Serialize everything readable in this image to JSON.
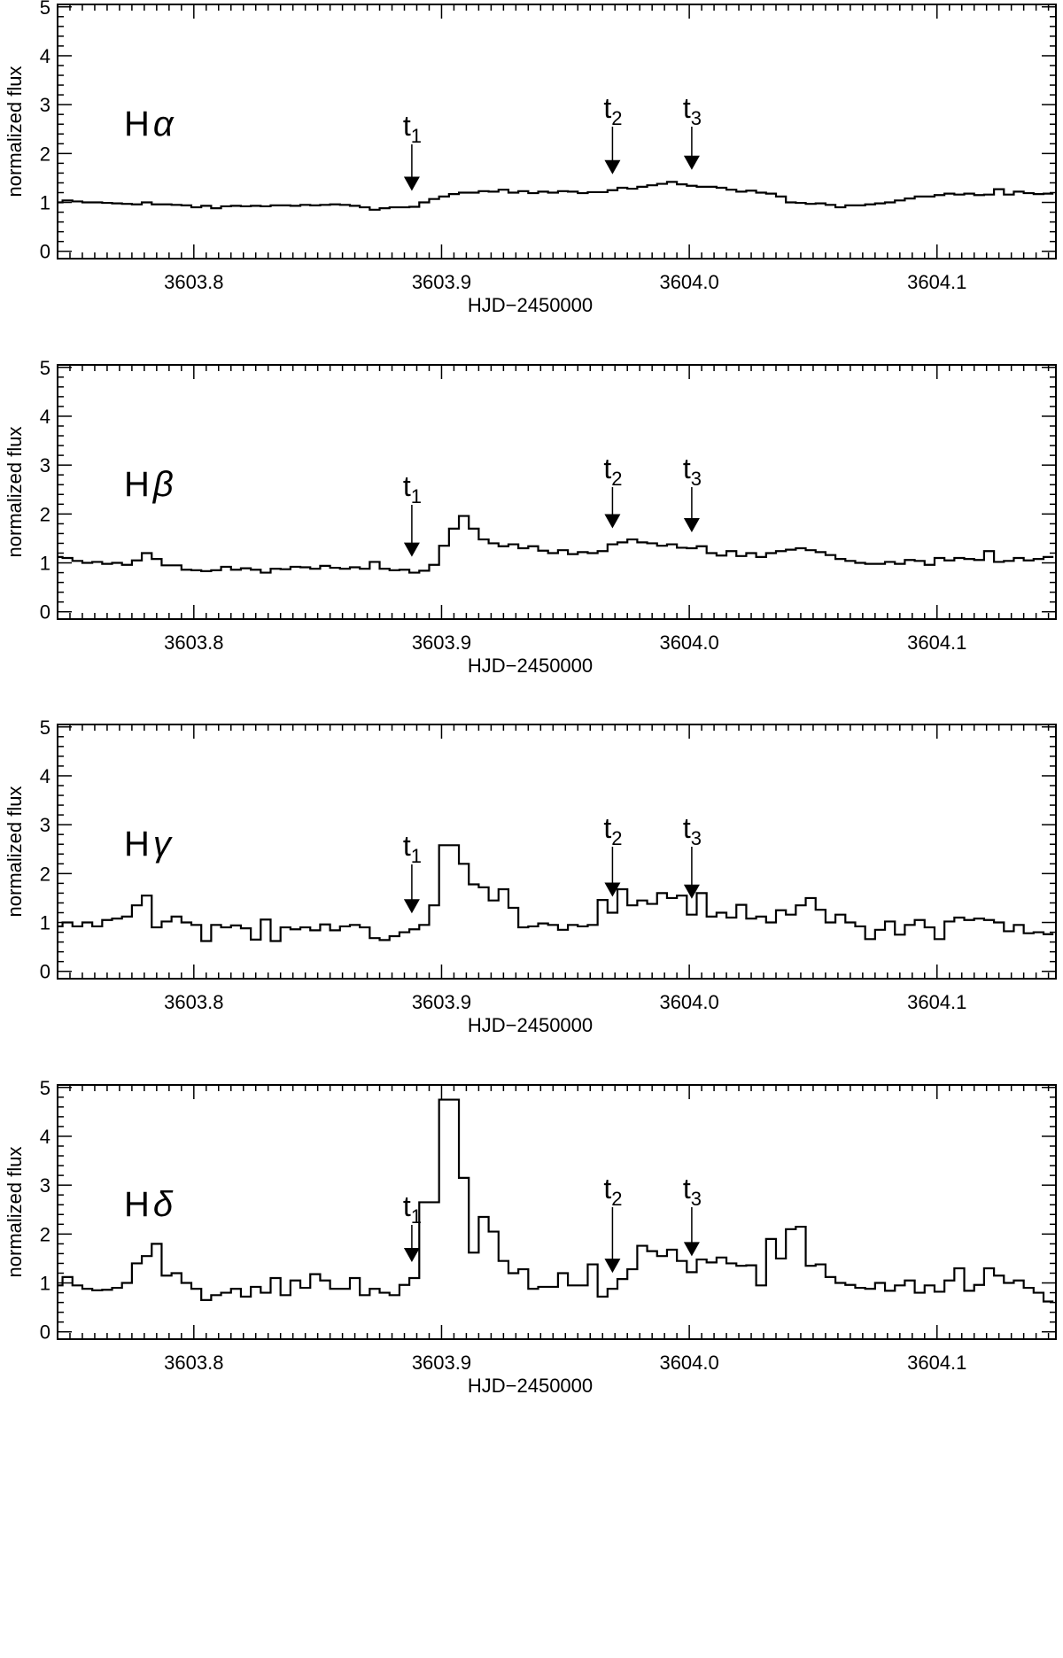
{
  "chart_data": [
    {
      "type": "line",
      "line_name": "H",
      "line_greek": "α",
      "xlabel": "HJD−2450000",
      "ylabel": "normalized flux",
      "xlim": [
        3603.745,
        3604.148
      ],
      "ylim": [
        -0.15,
        5.05
      ],
      "x_ticks": [
        3603.8,
        3603.9,
        3604.0,
        3604.1
      ],
      "x_tick_labels": [
        "3603.8",
        "3603.9",
        "3604.0",
        "3604.1"
      ],
      "y_ticks": [
        0,
        1,
        2,
        3,
        4,
        5
      ],
      "y_tick_labels": [
        "0",
        "1",
        "2",
        "3",
        "4",
        "5"
      ],
      "x": [
        3603.745,
        3603.749,
        3603.753,
        3603.757,
        3603.761,
        3603.765,
        3603.769,
        3603.773,
        3603.777,
        3603.781,
        3603.785,
        3603.789,
        3603.793,
        3603.797,
        3603.801,
        3603.805,
        3603.809,
        3603.813,
        3603.817,
        3603.821,
        3603.825,
        3603.829,
        3603.833,
        3603.837,
        3603.841,
        3603.845,
        3603.849,
        3603.853,
        3603.857,
        3603.861,
        3603.865,
        3603.869,
        3603.873,
        3603.877,
        3603.881,
        3603.885,
        3603.889,
        3603.893,
        3603.897,
        3603.901,
        3603.905,
        3603.909,
        3603.913,
        3603.917,
        3603.921,
        3603.925,
        3603.929,
        3603.933,
        3603.937,
        3603.941,
        3603.945,
        3603.949,
        3603.953,
        3603.957,
        3603.961,
        3603.965,
        3603.969,
        3603.973,
        3603.977,
        3603.981,
        3603.985,
        3603.989,
        3603.993,
        3603.997,
        3604.001,
        3604.005,
        3604.009,
        3604.013,
        3604.017,
        3604.021,
        3604.025,
        3604.029,
        3604.033,
        3604.037,
        3604.041,
        3604.045,
        3604.049,
        3604.053,
        3604.057,
        3604.061,
        3604.065,
        3604.069,
        3604.073,
        3604.077,
        3604.081,
        3604.085,
        3604.089,
        3604.093,
        3604.097,
        3604.101,
        3604.105,
        3604.109,
        3604.113,
        3604.117,
        3604.121,
        3604.125,
        3604.129,
        3604.133,
        3604.137,
        3604.141,
        3604.145
      ],
      "y": [
        1.0,
        1.04,
        1.02,
        1.0,
        1.0,
        0.99,
        0.98,
        0.97,
        0.96,
        1.0,
        0.96,
        0.96,
        0.95,
        0.94,
        0.9,
        0.93,
        0.88,
        0.92,
        0.93,
        0.92,
        0.93,
        0.92,
        0.94,
        0.94,
        0.93,
        0.95,
        0.94,
        0.95,
        0.96,
        0.95,
        0.93,
        0.9,
        0.85,
        0.88,
        0.9,
        0.9,
        0.91,
        1.0,
        1.07,
        1.12,
        1.17,
        1.2,
        1.2,
        1.23,
        1.22,
        1.26,
        1.2,
        1.23,
        1.19,
        1.22,
        1.2,
        1.23,
        1.22,
        1.19,
        1.21,
        1.21,
        1.25,
        1.3,
        1.28,
        1.32,
        1.35,
        1.38,
        1.42,
        1.37,
        1.34,
        1.32,
        1.32,
        1.3,
        1.26,
        1.22,
        1.24,
        1.2,
        1.18,
        1.12,
        1.0,
        0.99,
        0.97,
        0.98,
        0.95,
        0.9,
        0.94,
        0.94,
        0.96,
        0.98,
        1.0,
        1.04,
        1.08,
        1.12,
        1.12,
        1.15,
        1.18,
        1.16,
        1.18,
        1.15,
        1.16,
        1.27,
        1.16,
        1.22,
        1.19,
        1.17,
        1.18
      ],
      "markers": [
        {
          "label": "t",
          "sub": "1",
          "x": 3603.888
        },
        {
          "label": "t",
          "sub": "2",
          "x": 3603.969
        },
        {
          "label": "t",
          "sub": "3",
          "x": 3604.001
        }
      ]
    },
    {
      "type": "line",
      "line_name": "H",
      "line_greek": "β",
      "xlabel": "HJD−2450000",
      "ylabel": "normalized flux",
      "xlim": [
        3603.745,
        3604.148
      ],
      "ylim": [
        -0.15,
        5.05
      ],
      "x_ticks": [
        3603.8,
        3603.9,
        3604.0,
        3604.1
      ],
      "x_tick_labels": [
        "3603.8",
        "3603.9",
        "3604.0",
        "3604.1"
      ],
      "y_ticks": [
        0,
        1,
        2,
        3,
        4,
        5
      ],
      "y_tick_labels": [
        "0",
        "1",
        "2",
        "3",
        "4",
        "5"
      ],
      "x": [
        3603.745,
        3603.749,
        3603.753,
        3603.757,
        3603.761,
        3603.765,
        3603.769,
        3603.773,
        3603.777,
        3603.781,
        3603.785,
        3603.789,
        3603.793,
        3603.797,
        3603.801,
        3603.805,
        3603.809,
        3603.813,
        3603.817,
        3603.821,
        3603.825,
        3603.829,
        3603.833,
        3603.837,
        3603.841,
        3603.845,
        3603.849,
        3603.853,
        3603.857,
        3603.861,
        3603.865,
        3603.869,
        3603.873,
        3603.877,
        3603.881,
        3603.885,
        3603.889,
        3603.893,
        3603.897,
        3603.901,
        3603.905,
        3603.909,
        3603.913,
        3603.917,
        3603.921,
        3603.925,
        3603.929,
        3603.933,
        3603.937,
        3603.941,
        3603.945,
        3603.949,
        3603.953,
        3603.957,
        3603.961,
        3603.965,
        3603.969,
        3603.973,
        3603.977,
        3603.981,
        3603.985,
        3603.989,
        3603.993,
        3603.997,
        3604.001,
        3604.005,
        3604.009,
        3604.013,
        3604.017,
        3604.021,
        3604.025,
        3604.029,
        3604.033,
        3604.037,
        3604.041,
        3604.045,
        3604.049,
        3604.053,
        3604.057,
        3604.061,
        3604.065,
        3604.069,
        3604.073,
        3604.077,
        3604.081,
        3604.085,
        3604.089,
        3604.093,
        3604.097,
        3604.101,
        3604.105,
        3604.109,
        3604.113,
        3604.117,
        3604.121,
        3604.125,
        3604.129,
        3604.133,
        3604.137,
        3604.141,
        3604.145
      ],
      "y": [
        1.12,
        1.1,
        1.04,
        1.0,
        1.02,
        0.98,
        1.0,
        0.96,
        1.05,
        1.2,
        1.08,
        0.95,
        0.95,
        0.86,
        0.85,
        0.83,
        0.85,
        0.92,
        0.86,
        0.89,
        0.86,
        0.8,
        0.88,
        0.87,
        0.92,
        0.91,
        0.88,
        0.94,
        0.9,
        0.88,
        0.91,
        0.88,
        1.02,
        0.88,
        0.85,
        0.86,
        0.8,
        0.84,
        0.96,
        1.35,
        1.7,
        1.96,
        1.7,
        1.48,
        1.4,
        1.34,
        1.38,
        1.3,
        1.34,
        1.25,
        1.2,
        1.26,
        1.18,
        1.22,
        1.2,
        1.24,
        1.38,
        1.42,
        1.48,
        1.42,
        1.4,
        1.35,
        1.38,
        1.31,
        1.3,
        1.34,
        1.2,
        1.15,
        1.24,
        1.14,
        1.2,
        1.12,
        1.2,
        1.24,
        1.27,
        1.3,
        1.26,
        1.22,
        1.16,
        1.08,
        1.04,
        1.0,
        0.98,
        0.98,
        1.02,
        0.98,
        1.06,
        1.04,
        0.96,
        1.1,
        1.05,
        1.1,
        1.08,
        1.06,
        1.24,
        1.02,
        1.04,
        1.1,
        1.05,
        1.08,
        1.12
      ],
      "markers": [
        {
          "label": "t",
          "sub": "1",
          "x": 3603.888
        },
        {
          "label": "t",
          "sub": "2",
          "x": 3603.969
        },
        {
          "label": "t",
          "sub": "3",
          "x": 3604.001
        }
      ]
    },
    {
      "type": "line",
      "line_name": "H",
      "line_greek": "γ",
      "xlabel": "HJD−2450000",
      "ylabel": "normalized flux",
      "xlim": [
        3603.745,
        3604.148
      ],
      "ylim": [
        -0.15,
        5.05
      ],
      "x_ticks": [
        3603.8,
        3603.9,
        3604.0,
        3604.1
      ],
      "x_tick_labels": [
        "3603.8",
        "3603.9",
        "3604.0",
        "3604.1"
      ],
      "y_ticks": [
        0,
        1,
        2,
        3,
        4,
        5
      ],
      "y_tick_labels": [
        "0",
        "1",
        "2",
        "3",
        "4",
        "5"
      ],
      "x": [
        3603.745,
        3603.749,
        3603.753,
        3603.757,
        3603.761,
        3603.765,
        3603.769,
        3603.773,
        3603.777,
        3603.781,
        3603.785,
        3603.789,
        3603.793,
        3603.797,
        3603.801,
        3603.805,
        3603.809,
        3603.813,
        3603.817,
        3603.821,
        3603.825,
        3603.829,
        3603.833,
        3603.837,
        3603.841,
        3603.845,
        3603.849,
        3603.853,
        3603.857,
        3603.861,
        3603.865,
        3603.869,
        3603.873,
        3603.877,
        3603.881,
        3603.885,
        3603.889,
        3603.893,
        3603.897,
        3603.901,
        3603.905,
        3603.909,
        3603.913,
        3603.917,
        3603.921,
        3603.925,
        3603.929,
        3603.933,
        3603.937,
        3603.941,
        3603.945,
        3603.949,
        3603.953,
        3603.957,
        3603.961,
        3603.965,
        3603.969,
        3603.973,
        3603.977,
        3603.981,
        3603.985,
        3603.989,
        3603.993,
        3603.997,
        3604.001,
        3604.005,
        3604.009,
        3604.013,
        3604.017,
        3604.021,
        3604.025,
        3604.029,
        3604.033,
        3604.037,
        3604.041,
        3604.045,
        3604.049,
        3604.053,
        3604.057,
        3604.061,
        3604.065,
        3604.069,
        3604.073,
        3604.077,
        3604.081,
        3604.085,
        3604.089,
        3604.093,
        3604.097,
        3604.101,
        3604.105,
        3604.109,
        3604.113,
        3604.117,
        3604.121,
        3604.125,
        3604.129,
        3604.133,
        3604.137,
        3604.141,
        3604.145
      ],
      "y": [
        0.92,
        1.0,
        0.92,
        1.0,
        0.92,
        1.05,
        1.08,
        1.12,
        1.35,
        1.55,
        0.9,
        1.02,
        1.12,
        1.0,
        0.95,
        0.62,
        0.95,
        0.9,
        0.94,
        0.88,
        0.65,
        1.06,
        0.62,
        0.9,
        0.86,
        0.9,
        0.84,
        0.96,
        0.84,
        0.92,
        0.95,
        0.9,
        0.68,
        0.64,
        0.72,
        0.8,
        0.86,
        0.95,
        1.35,
        2.58,
        2.58,
        2.2,
        1.78,
        1.72,
        1.45,
        1.68,
        1.3,
        0.9,
        0.92,
        0.98,
        0.95,
        0.85,
        0.95,
        0.92,
        0.95,
        1.46,
        1.2,
        1.68,
        1.35,
        1.45,
        1.38,
        1.6,
        1.5,
        1.55,
        1.16,
        1.6,
        1.12,
        1.2,
        1.1,
        1.36,
        1.08,
        1.12,
        1.0,
        1.25,
        1.16,
        1.35,
        1.5,
        1.26,
        1.0,
        1.16,
        1.0,
        0.92,
        0.66,
        0.85,
        1.02,
        0.75,
        0.95,
        1.05,
        0.9,
        0.66,
        1.02,
        1.1,
        1.05,
        1.08,
        1.05,
        1.0,
        0.82,
        0.95,
        0.78,
        0.8,
        0.76
      ],
      "markers": [
        {
          "label": "t",
          "sub": "1",
          "x": 3603.888
        },
        {
          "label": "t",
          "sub": "2",
          "x": 3603.969
        },
        {
          "label": "t",
          "sub": "3",
          "x": 3604.001
        }
      ]
    },
    {
      "type": "line",
      "line_name": "H",
      "line_greek": "δ",
      "xlabel": "HJD−2450000",
      "ylabel": "normalized flux",
      "xlim": [
        3603.745,
        3604.148
      ],
      "ylim": [
        -0.15,
        5.05
      ],
      "x_ticks": [
        3603.8,
        3603.9,
        3604.0,
        3604.1
      ],
      "x_tick_labels": [
        "3603.8",
        "3603.9",
        "3604.0",
        "3604.1"
      ],
      "y_ticks": [
        0,
        1,
        2,
        3,
        4,
        5
      ],
      "y_tick_labels": [
        "0",
        "1",
        "2",
        "3",
        "4",
        "5"
      ],
      "x": [
        3603.745,
        3603.749,
        3603.753,
        3603.757,
        3603.761,
        3603.765,
        3603.769,
        3603.773,
        3603.777,
        3603.781,
        3603.785,
        3603.789,
        3603.793,
        3603.797,
        3603.801,
        3603.805,
        3603.809,
        3603.813,
        3603.817,
        3603.821,
        3603.825,
        3603.829,
        3603.833,
        3603.837,
        3603.841,
        3603.845,
        3603.849,
        3603.853,
        3603.857,
        3603.861,
        3603.865,
        3603.869,
        3603.873,
        3603.877,
        3603.881,
        3603.885,
        3603.889,
        3603.893,
        3603.897,
        3603.901,
        3603.905,
        3603.909,
        3603.913,
        3603.917,
        3603.921,
        3603.925,
        3603.929,
        3603.933,
        3603.937,
        3603.941,
        3603.945,
        3603.949,
        3603.953,
        3603.957,
        3603.961,
        3603.965,
        3603.969,
        3603.973,
        3603.977,
        3603.981,
        3603.985,
        3603.989,
        3603.993,
        3603.997,
        3604.001,
        3604.005,
        3604.009,
        3604.013,
        3604.017,
        3604.021,
        3604.025,
        3604.029,
        3604.033,
        3604.037,
        3604.041,
        3604.045,
        3604.049,
        3604.053,
        3604.057,
        3604.061,
        3604.065,
        3604.069,
        3604.073,
        3604.077,
        3604.081,
        3604.085,
        3604.089,
        3604.093,
        3604.097,
        3604.101,
        3604.105,
        3604.109,
        3604.113,
        3604.117,
        3604.121,
        3604.125,
        3604.129,
        3604.133,
        3604.137,
        3604.141,
        3604.145
      ],
      "y": [
        0.95,
        1.12,
        0.95,
        0.88,
        0.85,
        0.86,
        0.9,
        1.0,
        1.4,
        1.55,
        1.8,
        1.15,
        1.2,
        1.0,
        0.88,
        0.65,
        0.75,
        0.8,
        0.88,
        0.72,
        0.92,
        0.8,
        1.1,
        0.75,
        1.05,
        0.9,
        1.18,
        1.05,
        0.88,
        0.88,
        1.1,
        0.75,
        0.88,
        0.8,
        0.75,
        0.96,
        1.1,
        2.65,
        2.65,
        4.75,
        4.75,
        3.15,
        1.62,
        2.35,
        2.05,
        1.45,
        1.2,
        1.28,
        0.88,
        0.92,
        0.92,
        1.2,
        0.95,
        0.95,
        1.38,
        0.72,
        0.88,
        1.08,
        1.28,
        1.76,
        1.65,
        1.55,
        1.68,
        1.45,
        1.22,
        1.48,
        1.42,
        1.52,
        1.4,
        1.35,
        1.36,
        0.95,
        1.9,
        1.5,
        2.1,
        2.15,
        1.35,
        1.38,
        1.12,
        1.0,
        0.96,
        0.9,
        0.88,
        1.0,
        0.84,
        0.95,
        1.05,
        0.8,
        0.95,
        0.82,
        1.05,
        1.3,
        0.84,
        0.96,
        1.3,
        1.15,
        1.0,
        1.05,
        0.9,
        0.8,
        0.62
      ],
      "markers": [
        {
          "label": "t",
          "sub": "1",
          "x": 3603.888
        },
        {
          "label": "t",
          "sub": "2",
          "x": 3603.969
        },
        {
          "label": "t",
          "sub": "3",
          "x": 3604.001
        }
      ]
    }
  ]
}
